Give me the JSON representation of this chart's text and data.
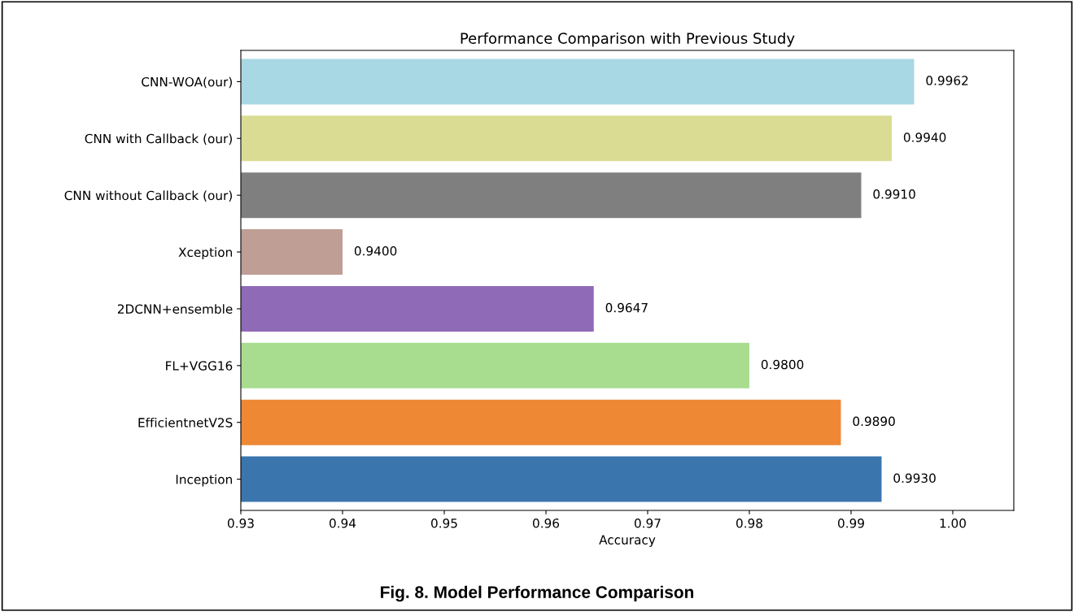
{
  "chart_data": {
    "type": "bar",
    "orientation": "horizontal",
    "title": "Performance Comparison with Previous Study",
    "xlabel": "Accuracy",
    "categories": [
      "CNN-WOA(our)",
      "CNN with Callback (our)",
      "CNN without Callback (our)",
      "Xception",
      "2DCNN+ensemble",
      "FL+VGG16",
      "EfficientnetV2S",
      "Inception"
    ],
    "values": [
      0.9962,
      0.994,
      0.991,
      0.94,
      0.9647,
      0.98,
      0.989,
      0.993
    ],
    "value_labels": [
      "0.9962",
      "0.9940",
      "0.9910",
      "0.9400",
      "0.9647",
      "0.9800",
      "0.9890",
      "0.9930"
    ],
    "colors": [
      "#a8d8e3",
      "#dbdc94",
      "#7f7f7f",
      "#bf9e96",
      "#8f6ab6",
      "#a8dd90",
      "#ee8835",
      "#3a75ad"
    ],
    "xlim": [
      0.93,
      1.006
    ],
    "xticks": [
      0.93,
      0.94,
      0.95,
      0.96,
      0.97,
      0.98,
      0.99,
      {
        "value": 1.0,
        "label": "1.00"
      }
    ],
    "grid": false,
    "legend": false,
    "annotations": [
      "Fig. 8. Model Performance Comparison"
    ]
  }
}
